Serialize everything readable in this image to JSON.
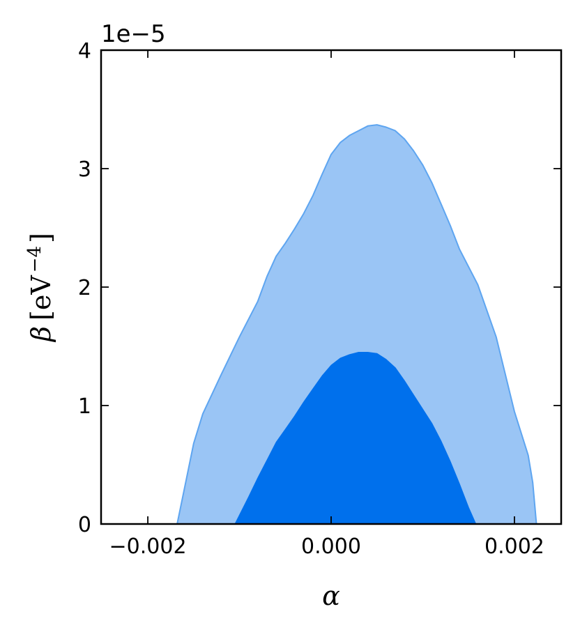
{
  "chart_data": {
    "type": "area",
    "title": "",
    "xlabel": "α",
    "ylabel_symbol": "β",
    "ylabel_unit": "[eV",
    "ylabel_exponent": "−4",
    "ylabel_close": "]",
    "y_offset_label": "1e−5",
    "xlim": [
      -0.00251,
      0.00251
    ],
    "ylim": [
      0,
      4
    ],
    "x_ticks": [
      -0.002,
      0.0,
      0.002
    ],
    "x_tick_labels": [
      "−0.002",
      "0.000",
      "0.002"
    ],
    "y_ticks": [
      0,
      1,
      2,
      3,
      4
    ],
    "y_tick_labels": [
      "0",
      "1",
      "2",
      "3",
      "4"
    ],
    "grid": false,
    "legend": "none",
    "colors": {
      "outer": "#9ac5f5",
      "outer_edge": "#5ea5f0",
      "inner": "#0070ec"
    },
    "series": [
      {
        "level": "outer",
        "x": [
          -0.00168,
          -0.0016,
          -0.0015,
          -0.0014,
          -0.0012,
          -0.001,
          -0.0008,
          -0.0007,
          -0.0006,
          -0.0005,
          -0.0004,
          -0.0003,
          -0.0002,
          -0.0001,
          0.0,
          0.0001,
          0.0002,
          0.0003,
          0.0004,
          0.0005,
          0.0006,
          0.0007,
          0.0008,
          0.0009,
          0.001,
          0.0011,
          0.0012,
          0.0013,
          0.0014,
          0.0016,
          0.0018,
          0.002,
          0.00215,
          0.0022,
          0.00224
        ],
        "y": [
          0.0,
          0.3,
          0.68,
          0.93,
          1.26,
          1.58,
          1.88,
          2.09,
          2.26,
          2.37,
          2.49,
          2.62,
          2.77,
          2.95,
          3.12,
          3.22,
          3.28,
          3.32,
          3.36,
          3.37,
          3.35,
          3.32,
          3.25,
          3.15,
          3.03,
          2.88,
          2.7,
          2.52,
          2.32,
          2.02,
          1.58,
          0.95,
          0.58,
          0.35,
          0.0
        ]
      },
      {
        "level": "inner",
        "x": [
          -0.00105,
          -0.0009,
          -0.0008,
          -0.0007,
          -0.0006,
          -0.0005,
          -0.0004,
          -0.0003,
          -0.0002,
          -0.0001,
          0.0,
          0.0001,
          0.0002,
          0.0003,
          0.0004,
          0.0005,
          0.0006,
          0.0007,
          0.0008,
          0.0009,
          0.001,
          0.0011,
          0.0012,
          0.0013,
          0.0014,
          0.0015,
          0.00158
        ],
        "y": [
          0.0,
          0.23,
          0.39,
          0.54,
          0.69,
          0.8,
          0.91,
          1.03,
          1.14,
          1.25,
          1.34,
          1.4,
          1.43,
          1.45,
          1.45,
          1.44,
          1.39,
          1.32,
          1.21,
          1.09,
          0.97,
          0.85,
          0.7,
          0.53,
          0.34,
          0.14,
          0.0
        ]
      }
    ]
  }
}
